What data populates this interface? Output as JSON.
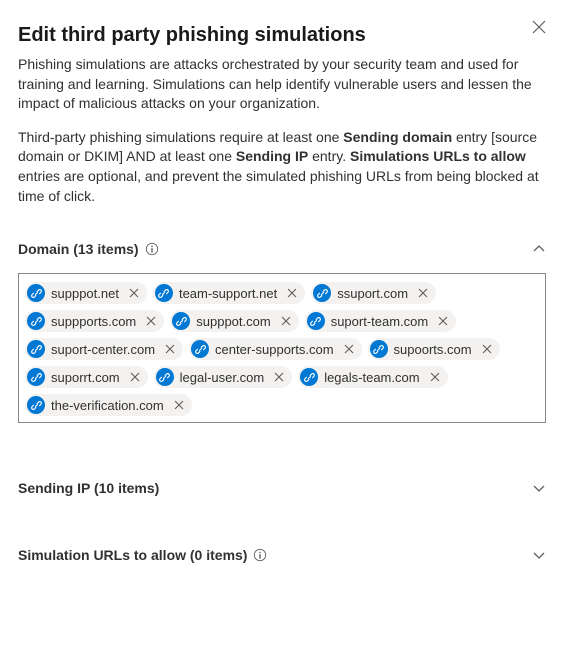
{
  "colors": {
    "accent": "#0078d4",
    "chipBg": "#f3f2f1",
    "text": "#323130",
    "muted": "#605e5c",
    "border": "#8a8886"
  },
  "header": {
    "title": "Edit third party phishing simulations",
    "description": "Phishing simulations are attacks orchestrated by your security team and used for training and learning. Simulations can help identify vulnerable users and lessen the impact of malicious attacks on your organization.",
    "req_pre": "Third-party phishing simulations require at least one ",
    "req_b1": "Sending domain",
    "req_mid1": " entry [source domain or DKIM] AND at least one ",
    "req_b2": "Sending IP",
    "req_mid2": " entry. ",
    "req_b3": "Simulations URLs to allow",
    "req_post": " entries are optional, and prevent the simulated phishing URLs from being blocked at time of click."
  },
  "sections": {
    "domain": {
      "title": "Domain (13 items)",
      "expanded": true,
      "items": [
        "supppot.net",
        "team-support.net",
        "ssuport.com",
        "suppports.com",
        "supppot.com",
        "suport-team.com",
        "suport-center.com",
        "center-supports.com",
        "supoorts.com",
        "suporrt.com",
        "legal-user.com",
        "legals-team.com",
        "the-verification.com"
      ]
    },
    "sendingIp": {
      "title": "Sending IP (10 items)",
      "expanded": false
    },
    "simUrls": {
      "title": "Simulation URLs to allow (0 items)",
      "expanded": false
    }
  }
}
